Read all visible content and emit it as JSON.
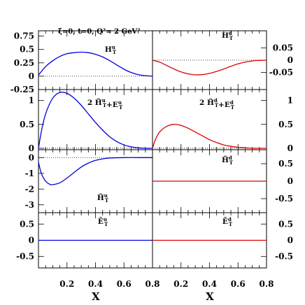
{
  "kinematics": "ξ=0, t=0, Q²= 2 GeV²",
  "xlabel": "X",
  "chart_data": [
    {
      "type": "line",
      "title": "H_T^u",
      "ylim": [
        -0.25,
        0.85
      ],
      "ytick_labels": [
        "0.75",
        "0.5",
        "0.25",
        "0",
        "-0.25"
      ],
      "yticks": [
        0.75,
        0.5,
        0.25,
        0,
        -0.25
      ],
      "x": [
        0.0,
        0.05,
        0.1,
        0.15,
        0.2,
        0.25,
        0.3,
        0.35,
        0.4,
        0.45,
        0.5,
        0.55,
        0.6,
        0.65,
        0.7,
        0.75,
        0.8
      ],
      "series": [
        {
          "color": "#0000dd",
          "values": [
            0.02,
            0.18,
            0.29,
            0.37,
            0.42,
            0.44,
            0.45,
            0.44,
            0.41,
            0.36,
            0.29,
            0.21,
            0.13,
            0.07,
            0.03,
            0.01,
            0.0
          ]
        }
      ],
      "reference_line": 0
    },
    {
      "type": "line",
      "title": "H_T^d",
      "ylim": [
        -0.12,
        0.12
      ],
      "ytick_labels": [
        "0.05",
        "0",
        "-0.05"
      ],
      "yticks": [
        0.05,
        0,
        -0.05
      ],
      "x": [
        0.0,
        0.05,
        0.1,
        0.15,
        0.2,
        0.25,
        0.3,
        0.35,
        0.4,
        0.45,
        0.5,
        0.55,
        0.6,
        0.65,
        0.7,
        0.75,
        0.8
      ],
      "series": [
        {
          "color": "#dd0000",
          "values": [
            0.0,
            -0.008,
            -0.022,
            -0.036,
            -0.048,
            -0.056,
            -0.06,
            -0.059,
            -0.054,
            -0.046,
            -0.036,
            -0.025,
            -0.015,
            -0.008,
            -0.003,
            -0.001,
            0.0
          ]
        }
      ],
      "reference_line": 0
    },
    {
      "type": "line",
      "title": "2 H̃_T^u+E_T^u",
      "ylim": [
        -0.03,
        1.23
      ],
      "ytick_labels": [
        "1",
        "0.5",
        "0"
      ],
      "yticks": [
        1,
        0.5,
        0
      ],
      "x": [
        0.0,
        0.02,
        0.05,
        0.1,
        0.15,
        0.2,
        0.25,
        0.3,
        0.35,
        0.4,
        0.45,
        0.5,
        0.55,
        0.6,
        0.65,
        0.7,
        0.75,
        0.8
      ],
      "series": [
        {
          "color": "#0000dd",
          "values": [
            0.0,
            0.35,
            0.72,
            1.05,
            1.17,
            1.15,
            1.05,
            0.9,
            0.72,
            0.54,
            0.38,
            0.24,
            0.14,
            0.07,
            0.03,
            0.01,
            0.0,
            0.0
          ]
        }
      ],
      "reference_line": 0
    },
    {
      "type": "line",
      "title": "2 H̃_T^d+E_T^d",
      "ylim": [
        -0.03,
        1.23
      ],
      "ytick_labels": [
        "1",
        "0.5",
        "0"
      ],
      "yticks": [
        1,
        0.5,
        0
      ],
      "x": [
        0.0,
        0.02,
        0.05,
        0.1,
        0.15,
        0.2,
        0.25,
        0.3,
        0.35,
        0.4,
        0.45,
        0.5,
        0.55,
        0.6,
        0.65,
        0.7,
        0.75,
        0.8
      ],
      "series": [
        {
          "color": "#dd0000",
          "values": [
            0.0,
            0.18,
            0.34,
            0.46,
            0.5,
            0.48,
            0.42,
            0.34,
            0.26,
            0.18,
            0.12,
            0.07,
            0.04,
            0.02,
            0.01,
            0.0,
            0.0,
            0.0
          ]
        }
      ],
      "reference_line": 0
    },
    {
      "type": "line",
      "title": "H̃_T^u",
      "ylim": [
        -3.5,
        0.5
      ],
      "ytick_labels": [
        "0",
        "-1",
        "-2",
        "-3"
      ],
      "yticks": [
        0,
        -1,
        -2,
        -3
      ],
      "x": [
        0.0,
        0.02,
        0.05,
        0.08,
        0.1,
        0.15,
        0.2,
        0.25,
        0.3,
        0.35,
        0.4,
        0.45,
        0.5,
        0.6,
        0.7,
        0.8
      ],
      "series": [
        {
          "color": "#0000dd",
          "values": [
            -0.3,
            -1.0,
            -1.5,
            -1.7,
            -1.72,
            -1.6,
            -1.3,
            -0.95,
            -0.6,
            -0.35,
            -0.18,
            -0.08,
            -0.03,
            0.0,
            0.0,
            0.0
          ]
        }
      ],
      "reference_line": 0
    },
    {
      "type": "line",
      "title": "H̃_T^d",
      "ylim": [
        -0.9,
        0.9
      ],
      "ytick_labels": [
        "0.5",
        "0",
        "-0.5"
      ],
      "yticks": [
        0.5,
        0,
        -0.5
      ],
      "x": [
        0.0,
        0.8
      ],
      "series": [
        {
          "color": "#dd0000",
          "values": [
            0.0,
            0.0
          ]
        }
      ],
      "reference_line": null
    },
    {
      "type": "line",
      "title": "Ẽ_T^u",
      "ylim": [
        -0.85,
        0.85
      ],
      "ytick_labels": [
        "0.5",
        "0",
        "-0.5"
      ],
      "yticks": [
        0.5,
        0,
        -0.5
      ],
      "x": [
        0.0,
        0.8
      ],
      "series": [
        {
          "color": "#0000dd",
          "values": [
            0.0,
            0.0
          ]
        }
      ],
      "reference_line": null
    },
    {
      "type": "line",
      "title": "Ẽ_T^d",
      "ylim": [
        -0.85,
        0.85
      ],
      "ytick_labels": [
        "0.5",
        "0",
        "-0.5"
      ],
      "yticks": [
        0.5,
        0,
        -0.5
      ],
      "x": [
        0.0,
        0.8
      ],
      "series": [
        {
          "color": "#dd0000",
          "values": [
            0.0,
            0.0
          ]
        }
      ],
      "reference_line": null
    }
  ],
  "x_axis": {
    "xlim": [
      0.0,
      0.8
    ],
    "tick_values": [
      0.2,
      0.4,
      0.6,
      0.8
    ],
    "tick_labels": [
      "0.2",
      "0.4",
      "0.6",
      "0.8"
    ]
  }
}
